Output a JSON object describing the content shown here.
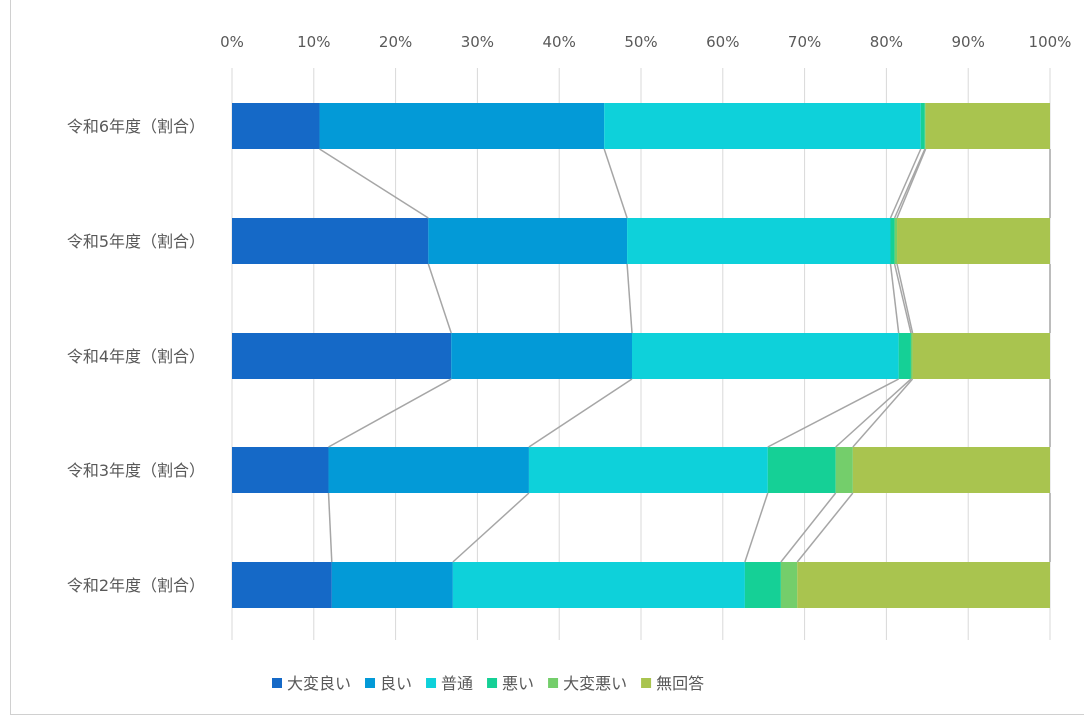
{
  "chart_data": {
    "type": "bar",
    "orientation": "horizontal",
    "stacked": "percent",
    "categories": [
      "令和6年度（割合）",
      "令和5年度（割合）",
      "令和4年度（割合）",
      "令和3年度（割合）",
      "令和2年度（割合）"
    ],
    "series": [
      {
        "name": "大変良い",
        "color": "#1569C7",
        "values": [
          10.7,
          24.0,
          26.8,
          11.8,
          12.2
        ]
      },
      {
        "name": "良い",
        "color": "#039AD7",
        "values": [
          34.8,
          24.3,
          22.1,
          24.5,
          14.8
        ]
      },
      {
        "name": "普通",
        "color": "#0ED1DA",
        "values": [
          38.7,
          32.2,
          32.6,
          29.2,
          35.7
        ]
      },
      {
        "name": "悪い",
        "color": "#15D096",
        "values": [
          0.5,
          0.5,
          1.5,
          8.3,
          4.4
        ]
      },
      {
        "name": "大変悪い",
        "color": "#74CE6B",
        "values": [
          0.1,
          0.3,
          0.2,
          2.1,
          2.0
        ]
      },
      {
        "name": "無回答",
        "color": "#A9C44F",
        "values": [
          15.2,
          18.7,
          16.8,
          24.1,
          30.9
        ]
      }
    ],
    "xlim": [
      0,
      100
    ],
    "x_ticks": [
      "0%",
      "10%",
      "20%",
      "30%",
      "40%",
      "50%",
      "60%",
      "70%",
      "80%",
      "90%",
      "100%"
    ],
    "grid": true,
    "series_lines": true,
    "legend": "bottom"
  }
}
